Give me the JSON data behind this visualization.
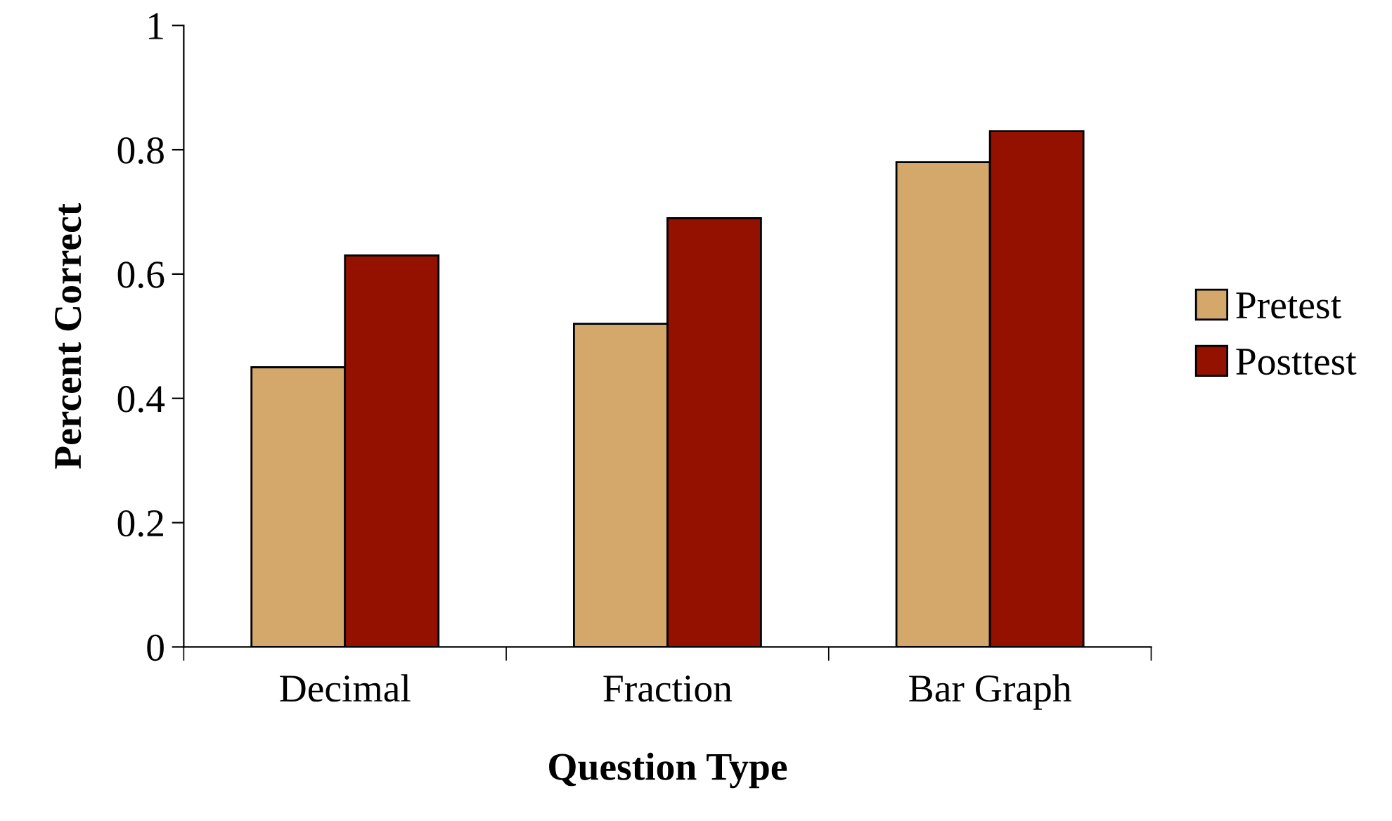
{
  "chart_data": {
    "type": "bar",
    "xlabel": "Question Type",
    "ylabel": "Percent Correct",
    "categories": [
      "Decimal",
      "Fraction",
      "Bar Graph"
    ],
    "series": [
      {
        "name": "Pretest",
        "color": "#d4a76a",
        "values": [
          0.45,
          0.52,
          0.78
        ]
      },
      {
        "name": "Posttest",
        "color": "#941100",
        "values": [
          0.63,
          0.69,
          0.83
        ]
      }
    ],
    "ylim": [
      0,
      1
    ],
    "yticks": [
      0,
      0.2,
      0.4,
      0.6,
      0.8,
      1
    ],
    "grid": false,
    "legend": "right"
  }
}
